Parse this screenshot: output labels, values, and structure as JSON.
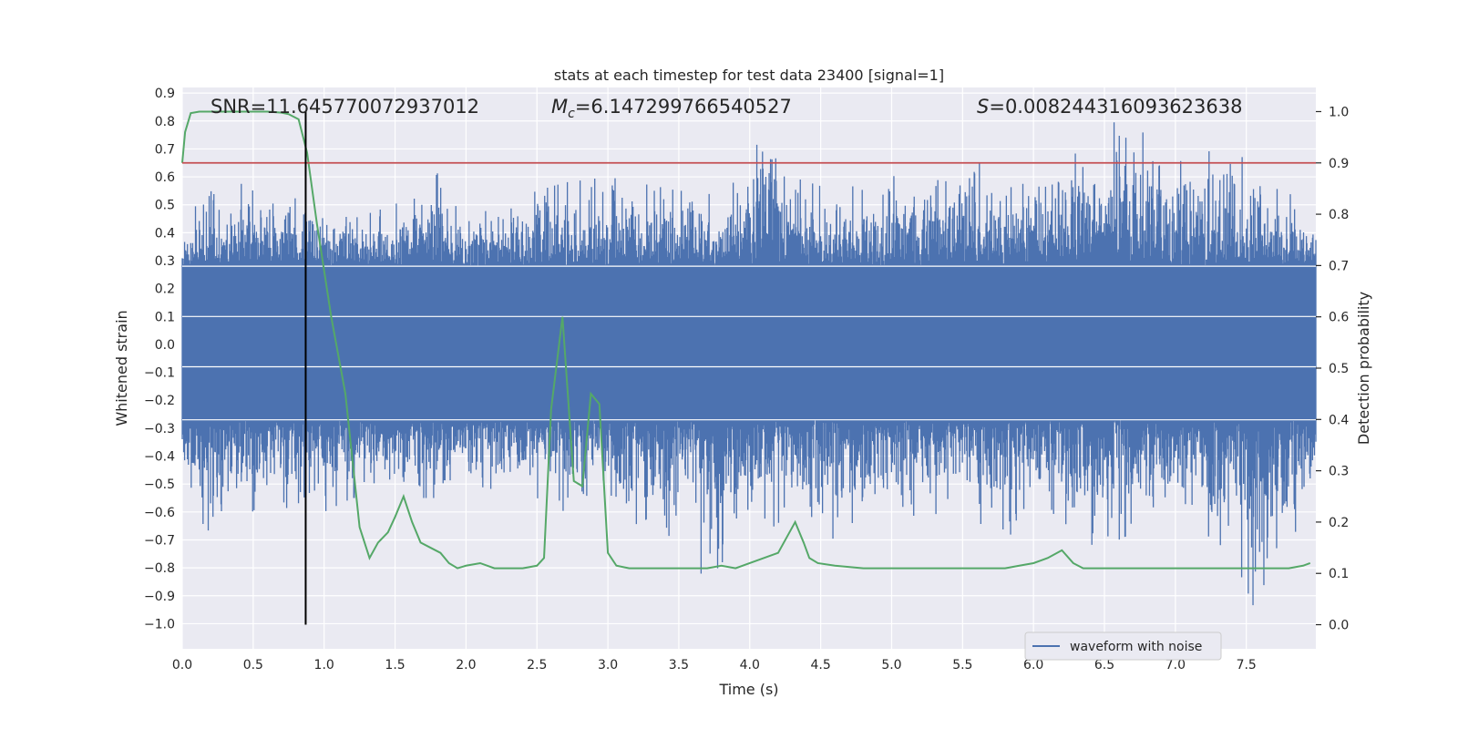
{
  "chart_data": {
    "type": "line",
    "title": "stats at each timestep for test data 23400 [signal=1]",
    "xlabel": "Time (s)",
    "ylabel": "Whitened strain",
    "y2label": "Detection probability",
    "xlim": [
      0.0,
      7.99
    ],
    "ylim": [
      -1.09,
      0.92
    ],
    "y2lim": [
      -0.047,
      1.047
    ],
    "x_ticks": [
      "0.0",
      "0.5",
      "1.0",
      "1.5",
      "2.0",
      "2.5",
      "3.0",
      "3.5",
      "4.0",
      "4.5",
      "5.0",
      "5.5",
      "6.0",
      "6.5",
      "7.0",
      "7.5"
    ],
    "y_ticks": [
      "0.9",
      "0.8",
      "0.7",
      "0.6",
      "0.5",
      "0.4",
      "0.3",
      "0.2",
      "0.1",
      "0.0",
      "−0.1",
      "−0.2",
      "−0.3",
      "−0.4",
      "−0.5",
      "−0.6",
      "−0.7",
      "−0.8",
      "−0.9",
      "−1.0"
    ],
    "y2_ticks": [
      "1.0",
      "0.9",
      "0.8",
      "0.7",
      "0.6",
      "0.5",
      "0.4",
      "0.3",
      "0.2",
      "0.1",
      "0.0"
    ],
    "grid": true,
    "legend": {
      "position": "lower-right",
      "entries": [
        "waveform with noise"
      ]
    },
    "annotations": {
      "snr": "SNR=11.645770072937012",
      "mc_symbol": "M",
      "mc_sub": "c",
      "mc_value": "=6.147299766540527",
      "s_symbol": "S",
      "s_value": "=0.008244316093623638"
    },
    "threshold": {
      "value": 0.9,
      "axis": "y2",
      "color": "#c44e52"
    },
    "marker_line": {
      "x": 0.87,
      "y_from": 1.0,
      "y_to": 0.0,
      "axis": "y2",
      "color": "#000000"
    },
    "series": [
      {
        "name": "waveform with noise",
        "axis": "y",
        "color": "#4c72b0",
        "description_amplitude_envelope": {
          "x": [
            0.0,
            0.1,
            0.2,
            0.3,
            0.4,
            0.5,
            0.6,
            0.7,
            0.8,
            0.9,
            1.0,
            1.2,
            1.5,
            1.8,
            2.0,
            2.5,
            2.7,
            3.0,
            3.5,
            3.8,
            4.0,
            4.1,
            4.3,
            4.6,
            5.0,
            5.5,
            5.8,
            6.0,
            6.5,
            6.6,
            7.0,
            7.4,
            7.6,
            7.9
          ],
          "upper": [
            0.42,
            0.5,
            0.55,
            0.5,
            0.58,
            0.55,
            0.52,
            0.48,
            0.62,
            0.6,
            0.48,
            0.45,
            0.5,
            0.65,
            0.45,
            0.55,
            0.58,
            0.6,
            0.55,
            0.55,
            0.62,
            0.81,
            0.6,
            0.55,
            0.6,
            0.68,
            0.6,
            0.66,
            0.7,
            0.84,
            0.65,
            0.72,
            0.58,
            0.52
          ],
          "lower": [
            -0.45,
            -0.55,
            -0.75,
            -0.55,
            -0.55,
            -0.6,
            -0.5,
            -0.55,
            -0.65,
            -0.68,
            -0.6,
            -0.55,
            -0.55,
            -0.55,
            -0.5,
            -0.55,
            -0.6,
            -0.6,
            -0.8,
            -0.84,
            -0.6,
            -0.68,
            -0.6,
            -0.7,
            -0.62,
            -0.6,
            -0.7,
            -0.6,
            -0.8,
            -0.7,
            -0.6,
            -0.75,
            -1.0,
            -0.6
          ]
        }
      },
      {
        "name": "",
        "axis": "y2",
        "color": "#55a868",
        "x": [
          0.0,
          0.02,
          0.06,
          0.12,
          0.2,
          0.3,
          0.4,
          0.5,
          0.6,
          0.7,
          0.75,
          0.82,
          0.88,
          0.95,
          1.05,
          1.15,
          1.25,
          1.32,
          1.38,
          1.45,
          1.5,
          1.56,
          1.62,
          1.68,
          1.75,
          1.82,
          1.88,
          1.94,
          2.0,
          2.1,
          2.2,
          2.3,
          2.4,
          2.5,
          2.55,
          2.6,
          2.68,
          2.76,
          2.82,
          2.88,
          2.94,
          3.0,
          3.06,
          3.15,
          3.3,
          3.5,
          3.7,
          3.8,
          3.9,
          4.0,
          4.1,
          4.2,
          4.28,
          4.32,
          4.38,
          4.42,
          4.48,
          4.6,
          4.8,
          5.0,
          5.2,
          5.4,
          5.6,
          5.8,
          5.9,
          6.0,
          6.1,
          6.2,
          6.28,
          6.35,
          6.5,
          6.7,
          7.0,
          7.3,
          7.6,
          7.7,
          7.8,
          7.9,
          7.95
        ],
        "values": [
          0.9,
          0.96,
          0.997,
          1.0,
          1.0,
          1.0,
          1.0,
          1.0,
          1.0,
          0.998,
          0.995,
          0.985,
          0.92,
          0.78,
          0.6,
          0.45,
          0.19,
          0.13,
          0.16,
          0.18,
          0.21,
          0.25,
          0.2,
          0.16,
          0.15,
          0.14,
          0.12,
          0.11,
          0.115,
          0.12,
          0.11,
          0.11,
          0.11,
          0.115,
          0.13,
          0.42,
          0.6,
          0.28,
          0.27,
          0.45,
          0.43,
          0.14,
          0.115,
          0.11,
          0.11,
          0.11,
          0.11,
          0.115,
          0.11,
          0.12,
          0.13,
          0.14,
          0.18,
          0.2,
          0.16,
          0.13,
          0.12,
          0.115,
          0.11,
          0.11,
          0.11,
          0.11,
          0.11,
          0.11,
          0.115,
          0.12,
          0.13,
          0.145,
          0.12,
          0.11,
          0.11,
          0.11,
          0.11,
          0.11,
          0.11,
          0.11,
          0.11,
          0.115,
          0.12
        ]
      }
    ]
  }
}
